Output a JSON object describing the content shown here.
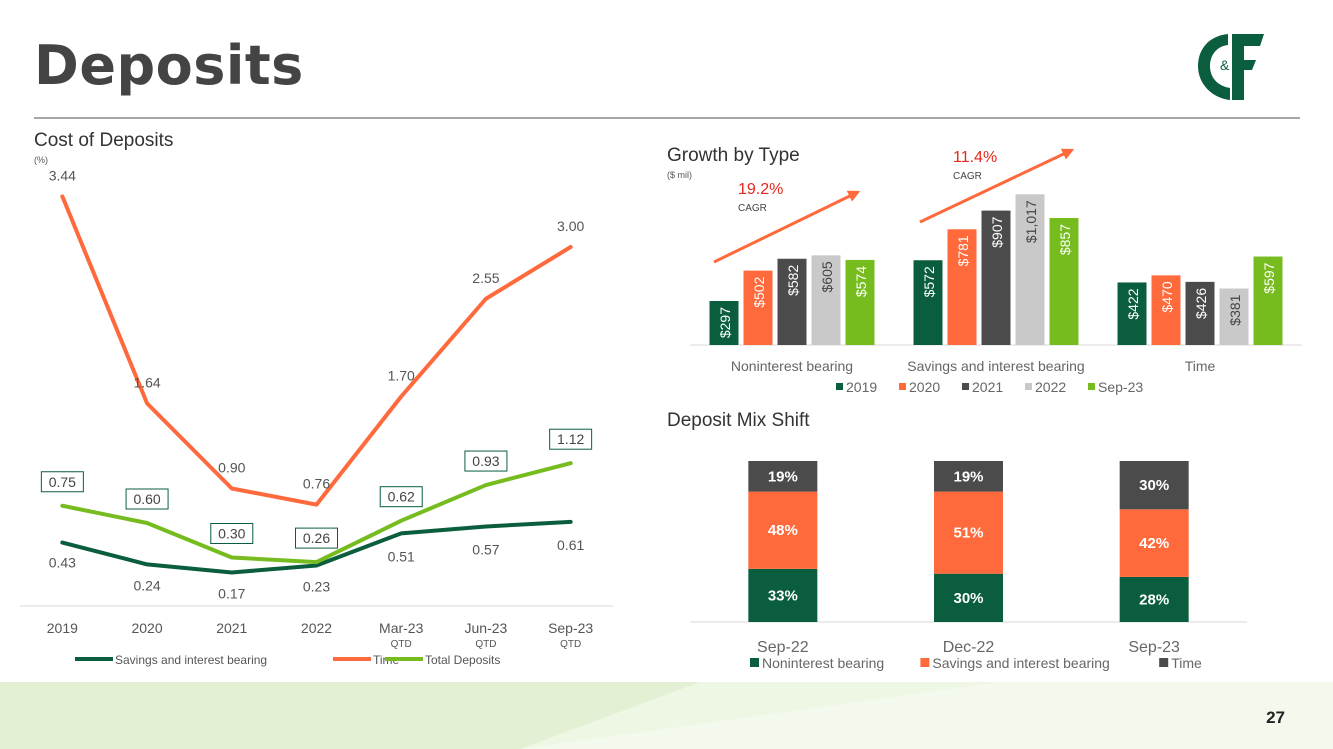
{
  "page": {
    "title": "Deposits",
    "page_number": "27",
    "logo_text": "C&F",
    "colors": {
      "dark_green": "#0b5e3d",
      "orange": "#ff6a3d",
      "dark_gray": "#4b4b4b",
      "light_gray": "#c9c9c9",
      "lime": "#77bc1f",
      "red_text": "#e8261b"
    }
  },
  "chart_data": [
    {
      "type": "line",
      "title": "Cost of Deposits",
      "unit": "(%)",
      "categories": [
        "2019",
        "2020",
        "2021",
        "2022",
        "Mar-23",
        "Jun-23",
        "Sep-23"
      ],
      "category_sublabels": [
        "",
        "",
        "",
        "",
        "QTD",
        "QTD",
        "QTD"
      ],
      "ylim": [
        0,
        3.6
      ],
      "series": [
        {
          "name": "Savings and interest bearing",
          "color": "#0b5e3d",
          "values": [
            0.43,
            0.24,
            0.17,
            0.23,
            0.51,
            0.57,
            0.61
          ],
          "labels": [
            "0.43",
            "0.24",
            "0.17",
            "0.23",
            "0.51",
            "0.57",
            "0.61"
          ]
        },
        {
          "name": "Time",
          "color": "#ff6a3d",
          "values": [
            3.44,
            1.64,
            0.9,
            0.76,
            1.7,
            2.55,
            3.0
          ],
          "labels": [
            "3.44",
            "1.64",
            "0.90",
            "0.76",
            "1.70",
            "2.55",
            "3.00"
          ]
        },
        {
          "name": "Total Deposits",
          "color": "#77bc1f",
          "values": [
            0.75,
            0.6,
            0.3,
            0.26,
            0.62,
            0.93,
            1.12
          ],
          "labels": [
            "0.75",
            "0.60",
            "0.30",
            "0.26",
            "0.62",
            "0.93",
            "1.12"
          ]
        }
      ]
    },
    {
      "type": "bar",
      "title": "Growth by Type",
      "unit": "($ mil)",
      "categories": [
        "Noninterest bearing",
        "Savings and interest bearing",
        "Time"
      ],
      "series": [
        {
          "name": "2019",
          "color": "#0b5e3d",
          "values": [
            297,
            572,
            422
          ],
          "labels": [
            "$297",
            "$572",
            "$422"
          ]
        },
        {
          "name": "2020",
          "color": "#ff6a3d",
          "values": [
            502,
            781,
            470
          ],
          "labels": [
            "$502",
            "$781",
            "$470"
          ]
        },
        {
          "name": "2021",
          "color": "#4b4b4b",
          "values": [
            582,
            907,
            426
          ],
          "labels": [
            "$582",
            "$907",
            "$426"
          ]
        },
        {
          "name": "2022",
          "color": "#c9c9c9",
          "values": [
            605,
            1017,
            381
          ],
          "labels": [
            "$605",
            "$1,017",
            "$381"
          ]
        },
        {
          "name": "Sep-23",
          "color": "#77bc1f",
          "values": [
            574,
            857,
            597
          ],
          "labels": [
            "$574",
            "$857",
            "$597"
          ]
        }
      ],
      "annotations": [
        {
          "category": "Noninterest bearing",
          "value": "19.2%",
          "label": "CAGR"
        },
        {
          "category": "Savings and interest bearing",
          "value": "11.4%",
          "label": "CAGR"
        }
      ],
      "ymax": 1100
    },
    {
      "type": "bar",
      "stacked": true,
      "title": "Deposit Mix Shift",
      "categories": [
        "Sep-22",
        "Dec-22",
        "Sep-23"
      ],
      "series": [
        {
          "name": "Noninterest bearing",
          "color": "#0b5e3d",
          "values": [
            33,
            30,
            28
          ],
          "labels": [
            "33%",
            "30%",
            "28%"
          ]
        },
        {
          "name": "Savings and interest bearing",
          "color": "#ff6a3d",
          "values": [
            48,
            51,
            42
          ],
          "labels": [
            "48%",
            "51%",
            "42%"
          ]
        },
        {
          "name": "Time",
          "color": "#4b4b4b",
          "values": [
            19,
            19,
            30
          ],
          "labels": [
            "19%",
            "19%",
            "30%"
          ]
        }
      ]
    }
  ]
}
